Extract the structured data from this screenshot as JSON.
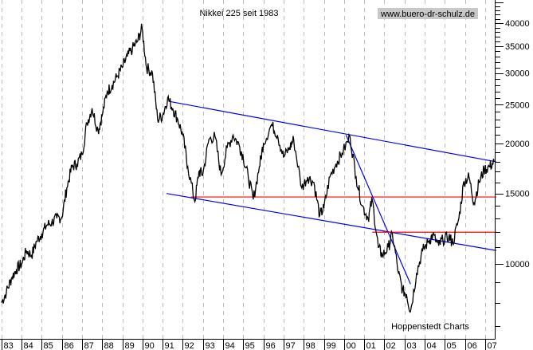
{
  "chart_data": {
    "type": "line",
    "title": "Nikkei 225 seit 1983",
    "watermark": "www.buero-dr-schulz.de",
    "footer": "Hoppenstedt Charts",
    "xlabel": "",
    "ylabel": "",
    "y_scale": "log",
    "ylim": [
      6500,
      45700
    ],
    "xlim": [
      1983,
      2007.55
    ],
    "y_ticks": [
      10000,
      15000,
      20000,
      25000,
      30000,
      35000,
      40000
    ],
    "y_tick_labels": [
      "10000",
      "15000",
      "20000",
      "25000",
      "30000",
      "35000",
      "40000"
    ],
    "x_ticks": [
      1983,
      1984,
      1985,
      1986,
      1987,
      1988,
      1989,
      1990,
      1991,
      1992,
      1993,
      1994,
      1995,
      1996,
      1997,
      1998,
      1999,
      2000,
      2001,
      2002,
      2003,
      2004,
      2005,
      2006,
      2007
    ],
    "x_tick_labels": [
      "83",
      "84",
      "85",
      "86",
      "87",
      "88",
      "89",
      "90",
      "91",
      "92",
      "93",
      "94",
      "95",
      "96",
      "97",
      "98",
      "99",
      "00",
      "01",
      "02",
      "03",
      "04",
      "05",
      "06",
      "07"
    ],
    "grid": "vertical dashed",
    "colors": {
      "series": "#000000",
      "trendlines": "#0000ff",
      "support": "#ff0000",
      "grid": "#c0c0c0",
      "watermark_bg": "#c8c8c8"
    },
    "series": [
      {
        "x": [
          1983.0,
          1983.25,
          1983.5,
          1983.75,
          1984.0,
          1984.25,
          1984.5,
          1984.75,
          1985.0,
          1985.25,
          1985.5,
          1985.75,
          1986.0,
          1986.25,
          1986.5,
          1986.75,
          1987.0,
          1987.25,
          1987.5,
          1987.8,
          1988.0,
          1988.25,
          1988.5,
          1988.75,
          1989.0,
          1989.25,
          1989.5,
          1989.75,
          1989.98,
          1990.2,
          1990.5,
          1990.75,
          1991.0,
          1991.25,
          1991.5,
          1991.75,
          1992.0,
          1992.25,
          1992.6,
          1992.8,
          1993.0,
          1993.3,
          1993.6,
          1993.9,
          1994.2,
          1994.5,
          1994.8,
          1995.0,
          1995.25,
          1995.5,
          1995.8,
          1996.0,
          1996.4,
          1996.7,
          1997.0,
          1997.3,
          1997.5,
          1997.9,
          1998.2,
          1998.5,
          1998.8,
          1999.0,
          1999.3,
          1999.6,
          1999.9,
          2000.3,
          2000.6,
          2000.9,
          2001.2,
          2001.4,
          2001.7,
          2001.9,
          2002.2,
          2002.4,
          2002.7,
          2002.9,
          2003.1,
          2003.3,
          2003.6,
          2003.9,
          2004.2,
          2004.4,
          2004.7,
          2004.9,
          2005.2,
          2005.4,
          2005.7,
          2005.95,
          2006.2,
          2006.45,
          2006.7,
          2006.95,
          2007.2,
          2007.45
        ],
        "values": [
          8000,
          8500,
          9200,
          9700,
          10000,
          10800,
          10500,
          11400,
          11900,
          12500,
          12700,
          13000,
          13100,
          15500,
          17500,
          17800,
          18800,
          22500,
          24500,
          21500,
          23500,
          27000,
          28000,
          29500,
          31000,
          33000,
          34500,
          36000,
          38900,
          31000,
          30000,
          23000,
          23500,
          26000,
          24500,
          23000,
          21000,
          17500,
          14300,
          17000,
          16800,
          20500,
          20800,
          16700,
          19500,
          21000,
          19800,
          18500,
          16500,
          14500,
          17500,
          20000,
          22300,
          21000,
          18500,
          19500,
          20500,
          15500,
          16500,
          16000,
          13200,
          13800,
          16500,
          17800,
          18900,
          20800,
          16500,
          14000,
          13000,
          14500,
          11000,
          10500,
          11000,
          11900,
          9500,
          8600,
          8400,
          7600,
          9500,
          10800,
          11400,
          11800,
          11100,
          11500,
          11700,
          11300,
          13000,
          16100,
          16500,
          14200,
          16000,
          17200,
          17500,
          18000
        ]
      }
    ],
    "trendlines": [
      {
        "from": [
          1991.3,
          25500
        ],
        "to": [
          2007.55,
          18000
        ],
        "color": "blue"
      },
      {
        "from": [
          1991.2,
          15000
        ],
        "to": [
          2007.55,
          10800
        ],
        "color": "blue"
      },
      {
        "from": [
          2000.1,
          21000
        ],
        "to": [
          2003.3,
          8900
        ],
        "color": "blue"
      },
      {
        "from": [
          1992.4,
          14700
        ],
        "to": [
          2007.55,
          14700
        ],
        "color": "red"
      },
      {
        "from": [
          2001.4,
          12000
        ],
        "to": [
          2007.55,
          12000
        ],
        "color": "red"
      }
    ]
  }
}
